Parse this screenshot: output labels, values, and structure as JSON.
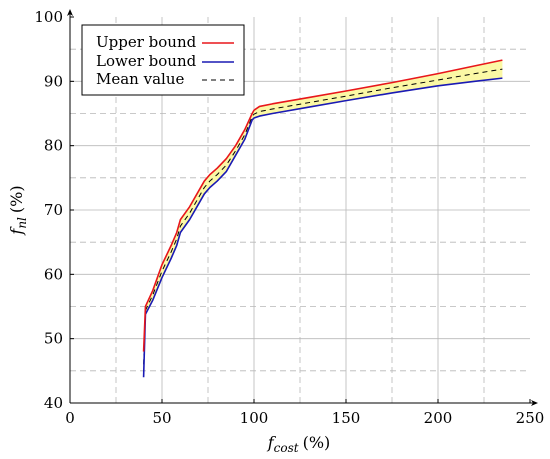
{
  "chart_data": {
    "type": "line",
    "title": "",
    "xlabel": {
      "symbol": "f",
      "subscript": "cost",
      "unit": "(%)"
    },
    "ylabel": {
      "symbol": "f",
      "subscript": "nl",
      "unit": "(%)"
    },
    "xlim": [
      0,
      250
    ],
    "ylim": [
      40,
      100
    ],
    "xticks": [
      0,
      50,
      100,
      150,
      200,
      250
    ],
    "yticks": [
      40,
      50,
      60,
      70,
      80,
      90,
      100
    ],
    "x_minor_grid": [
      25,
      75,
      125,
      175,
      225
    ],
    "y_minor_grid": [
      45,
      55,
      65,
      75,
      85,
      95
    ],
    "grid": true,
    "legend_position": "top-left",
    "fill_between_bounds": true,
    "colors": {
      "upper": "#e8161b",
      "lower": "#1a1ab4",
      "mean": "#000000",
      "fill": "#fbf8a5",
      "grid": "#b8b8b8"
    },
    "series": [
      {
        "name": "Upper bound",
        "key": "upper",
        "x": [
          40,
          41,
          45,
          50,
          55,
          58,
          60,
          65,
          70,
          73,
          76,
          80,
          85,
          90,
          95,
          99,
          100,
          103,
          110,
          130,
          150,
          175,
          200,
          220,
          235
        ],
        "y": [
          48,
          55,
          57.5,
          61.5,
          64.5,
          66.5,
          68.5,
          70.5,
          73,
          74.5,
          75.5,
          76.5,
          78,
          80,
          82.5,
          85,
          85.5,
          86.1,
          86.5,
          87.5,
          88.5,
          89.8,
          91.2,
          92.4,
          93.3
        ]
      },
      {
        "name": "Lower bound",
        "key": "lower",
        "x": [
          40,
          41,
          45,
          50,
          55,
          58,
          60,
          65,
          70,
          73,
          76,
          80,
          85,
          90,
          95,
          99,
          100,
          103,
          110,
          130,
          150,
          175,
          200,
          220,
          235
        ],
        "y": [
          44,
          53.8,
          56,
          59.5,
          62.5,
          64.5,
          66.5,
          68.5,
          71,
          72.5,
          73.5,
          74.5,
          76,
          78.5,
          81,
          84,
          84.3,
          84.6,
          85,
          86,
          87,
          88.2,
          89.3,
          90,
          90.5
        ]
      },
      {
        "name": "Mean value",
        "key": "mean",
        "x": [
          40,
          41,
          45,
          50,
          55,
          58,
          60,
          65,
          70,
          73,
          76,
          80,
          85,
          90,
          95,
          99,
          100,
          103,
          110,
          130,
          150,
          175,
          200,
          220,
          235
        ],
        "y": [
          46,
          54.4,
          56.8,
          60.5,
          63.5,
          65.5,
          67.5,
          69.5,
          72,
          73.5,
          74.5,
          75.5,
          77,
          79.2,
          81.7,
          84.5,
          84.9,
          85.3,
          85.7,
          86.7,
          87.7,
          89,
          90.2,
          91.2,
          91.9
        ]
      }
    ]
  }
}
